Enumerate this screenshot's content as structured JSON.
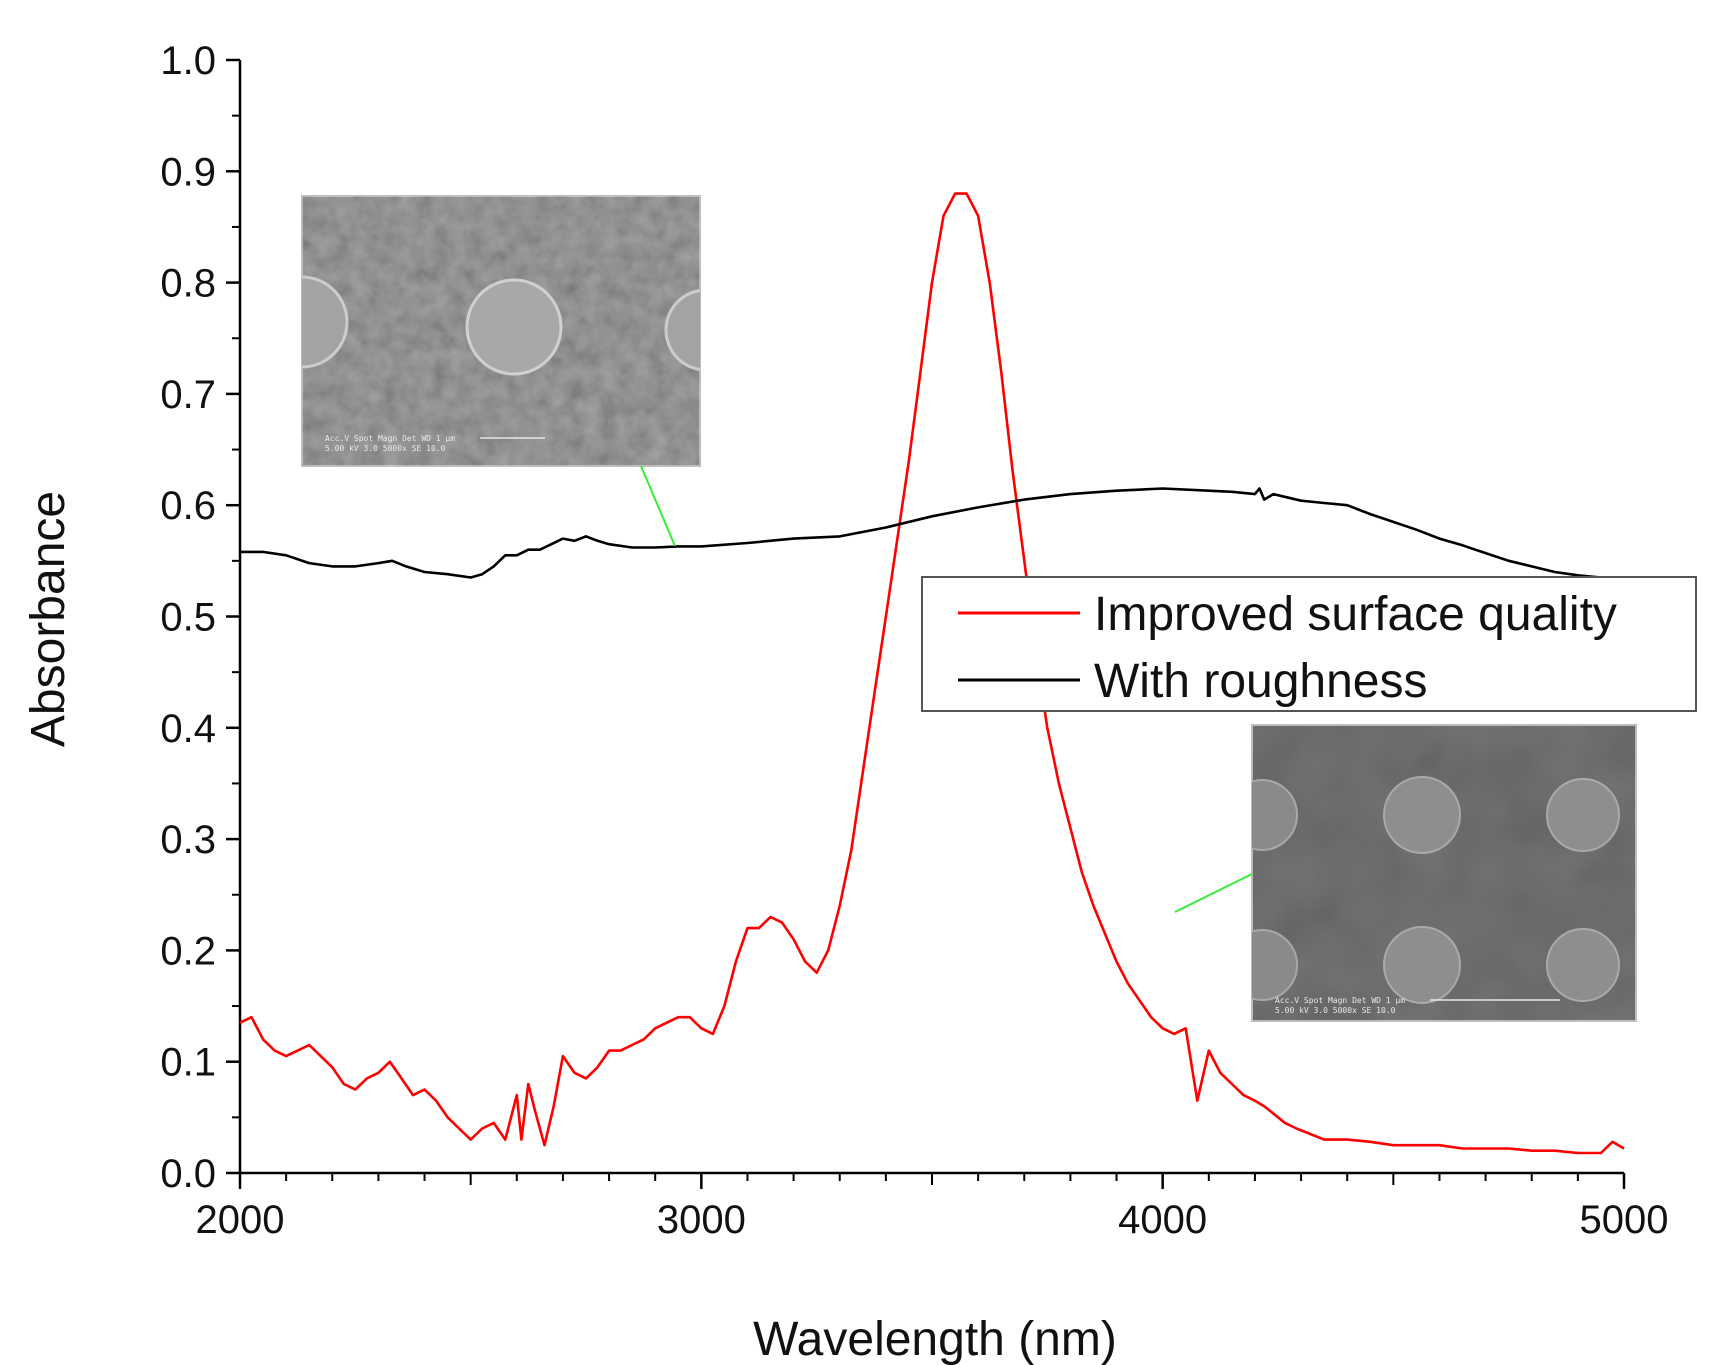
{
  "chart_data": {
    "type": "line",
    "title": "",
    "xlabel": "Wavelength (nm)",
    "ylabel": "Absorbance",
    "xlim": [
      2000,
      5000
    ],
    "ylim": [
      0.0,
      1.0
    ],
    "xticks": [
      "2000",
      "3000",
      "4000",
      "5000"
    ],
    "yticks": [
      "0.0",
      "0.1",
      "0.2",
      "0.3",
      "0.4",
      "0.5",
      "0.6",
      "0.7",
      "0.8",
      "0.9",
      "1.0"
    ],
    "legend_position": "center-right",
    "series": [
      {
        "name": "Improved surface quality",
        "color": "#ff0000",
        "x": [
          2000,
          2025,
          2050,
          2075,
          2100,
          2125,
          2150,
          2175,
          2200,
          2225,
          2250,
          2275,
          2300,
          2325,
          2350,
          2375,
          2400,
          2425,
          2450,
          2475,
          2500,
          2525,
          2550,
          2575,
          2600,
          2610,
          2625,
          2640,
          2660,
          2680,
          2700,
          2725,
          2750,
          2775,
          2800,
          2825,
          2850,
          2875,
          2900,
          2925,
          2950,
          2975,
          3000,
          3025,
          3050,
          3075,
          3100,
          3125,
          3150,
          3175,
          3200,
          3225,
          3250,
          3275,
          3300,
          3325,
          3350,
          3375,
          3400,
          3425,
          3450,
          3475,
          3500,
          3525,
          3550,
          3575,
          3600,
          3625,
          3650,
          3675,
          3700,
          3725,
          3750,
          3775,
          3800,
          3825,
          3850,
          3875,
          3900,
          3925,
          3950,
          3975,
          4000,
          4025,
          4050,
          4075,
          4100,
          4125,
          4150,
          4175,
          4200,
          4220,
          4235,
          4250,
          4265,
          4290,
          4320,
          4350,
          4400,
          4450,
          4500,
          4550,
          4600,
          4650,
          4700,
          4750,
          4800,
          4850,
          4900,
          4950,
          4975,
          5000
        ],
        "y": [
          0.135,
          0.14,
          0.12,
          0.11,
          0.105,
          0.11,
          0.115,
          0.105,
          0.095,
          0.08,
          0.075,
          0.085,
          0.09,
          0.1,
          0.085,
          0.07,
          0.075,
          0.065,
          0.05,
          0.04,
          0.03,
          0.04,
          0.045,
          0.03,
          0.07,
          0.03,
          0.08,
          0.055,
          0.025,
          0.06,
          0.105,
          0.09,
          0.085,
          0.095,
          0.11,
          0.11,
          0.115,
          0.12,
          0.13,
          0.135,
          0.14,
          0.14,
          0.13,
          0.125,
          0.15,
          0.19,
          0.22,
          0.22,
          0.23,
          0.225,
          0.21,
          0.19,
          0.18,
          0.2,
          0.24,
          0.29,
          0.36,
          0.43,
          0.5,
          0.57,
          0.64,
          0.72,
          0.8,
          0.86,
          0.88,
          0.88,
          0.86,
          0.8,
          0.72,
          0.63,
          0.55,
          0.47,
          0.4,
          0.35,
          0.31,
          0.27,
          0.24,
          0.215,
          0.19,
          0.17,
          0.155,
          0.14,
          0.13,
          0.125,
          0.13,
          0.065,
          0.11,
          0.09,
          0.08,
          0.07,
          0.065,
          0.06,
          0.055,
          0.05,
          0.045,
          0.04,
          0.035,
          0.03,
          0.03,
          0.028,
          0.025,
          0.025,
          0.025,
          0.022,
          0.022,
          0.022,
          0.02,
          0.02,
          0.018,
          0.018,
          0.028,
          0.022
        ]
      },
      {
        "name": "With roughness",
        "color": "#000000",
        "x": [
          2000,
          2050,
          2100,
          2150,
          2200,
          2250,
          2300,
          2330,
          2360,
          2400,
          2450,
          2500,
          2525,
          2550,
          2575,
          2600,
          2625,
          2650,
          2675,
          2700,
          2725,
          2750,
          2775,
          2800,
          2850,
          2900,
          2950,
          3000,
          3100,
          3200,
          3300,
          3400,
          3500,
          3600,
          3700,
          3800,
          3900,
          4000,
          4100,
          4150,
          4200,
          4210,
          4220,
          4240,
          4260,
          4300,
          4350,
          4400,
          4450,
          4500,
          4550,
          4600,
          4650,
          4700,
          4750,
          4800,
          4850,
          4900,
          4950,
          4990
        ],
        "y": [
          0.558,
          0.558,
          0.555,
          0.548,
          0.545,
          0.545,
          0.548,
          0.55,
          0.545,
          0.54,
          0.538,
          0.535,
          0.538,
          0.545,
          0.555,
          0.555,
          0.56,
          0.56,
          0.565,
          0.57,
          0.568,
          0.572,
          0.568,
          0.565,
          0.562,
          0.562,
          0.563,
          0.563,
          0.566,
          0.57,
          0.572,
          0.58,
          0.59,
          0.598,
          0.605,
          0.61,
          0.613,
          0.615,
          0.613,
          0.612,
          0.61,
          0.615,
          0.605,
          0.61,
          0.608,
          0.604,
          0.602,
          0.6,
          0.592,
          0.585,
          0.578,
          0.57,
          0.564,
          0.557,
          0.55,
          0.545,
          0.54,
          0.537,
          0.535,
          0.535
        ]
      }
    ],
    "insets": [
      {
        "name": "sem-image-rough",
        "scale_text": "Acc.V  Spot Magn   Det WD         1 μm",
        "scale_text2": "5.00 kV 3.0  5000x  SE  10.0"
      },
      {
        "name": "sem-image-smooth",
        "scale_text": "Acc.V  Spot Magn   Det WD         1 μm",
        "scale_text2": "5.00 kV 3.0  5000x  SE  10.0"
      }
    ]
  }
}
